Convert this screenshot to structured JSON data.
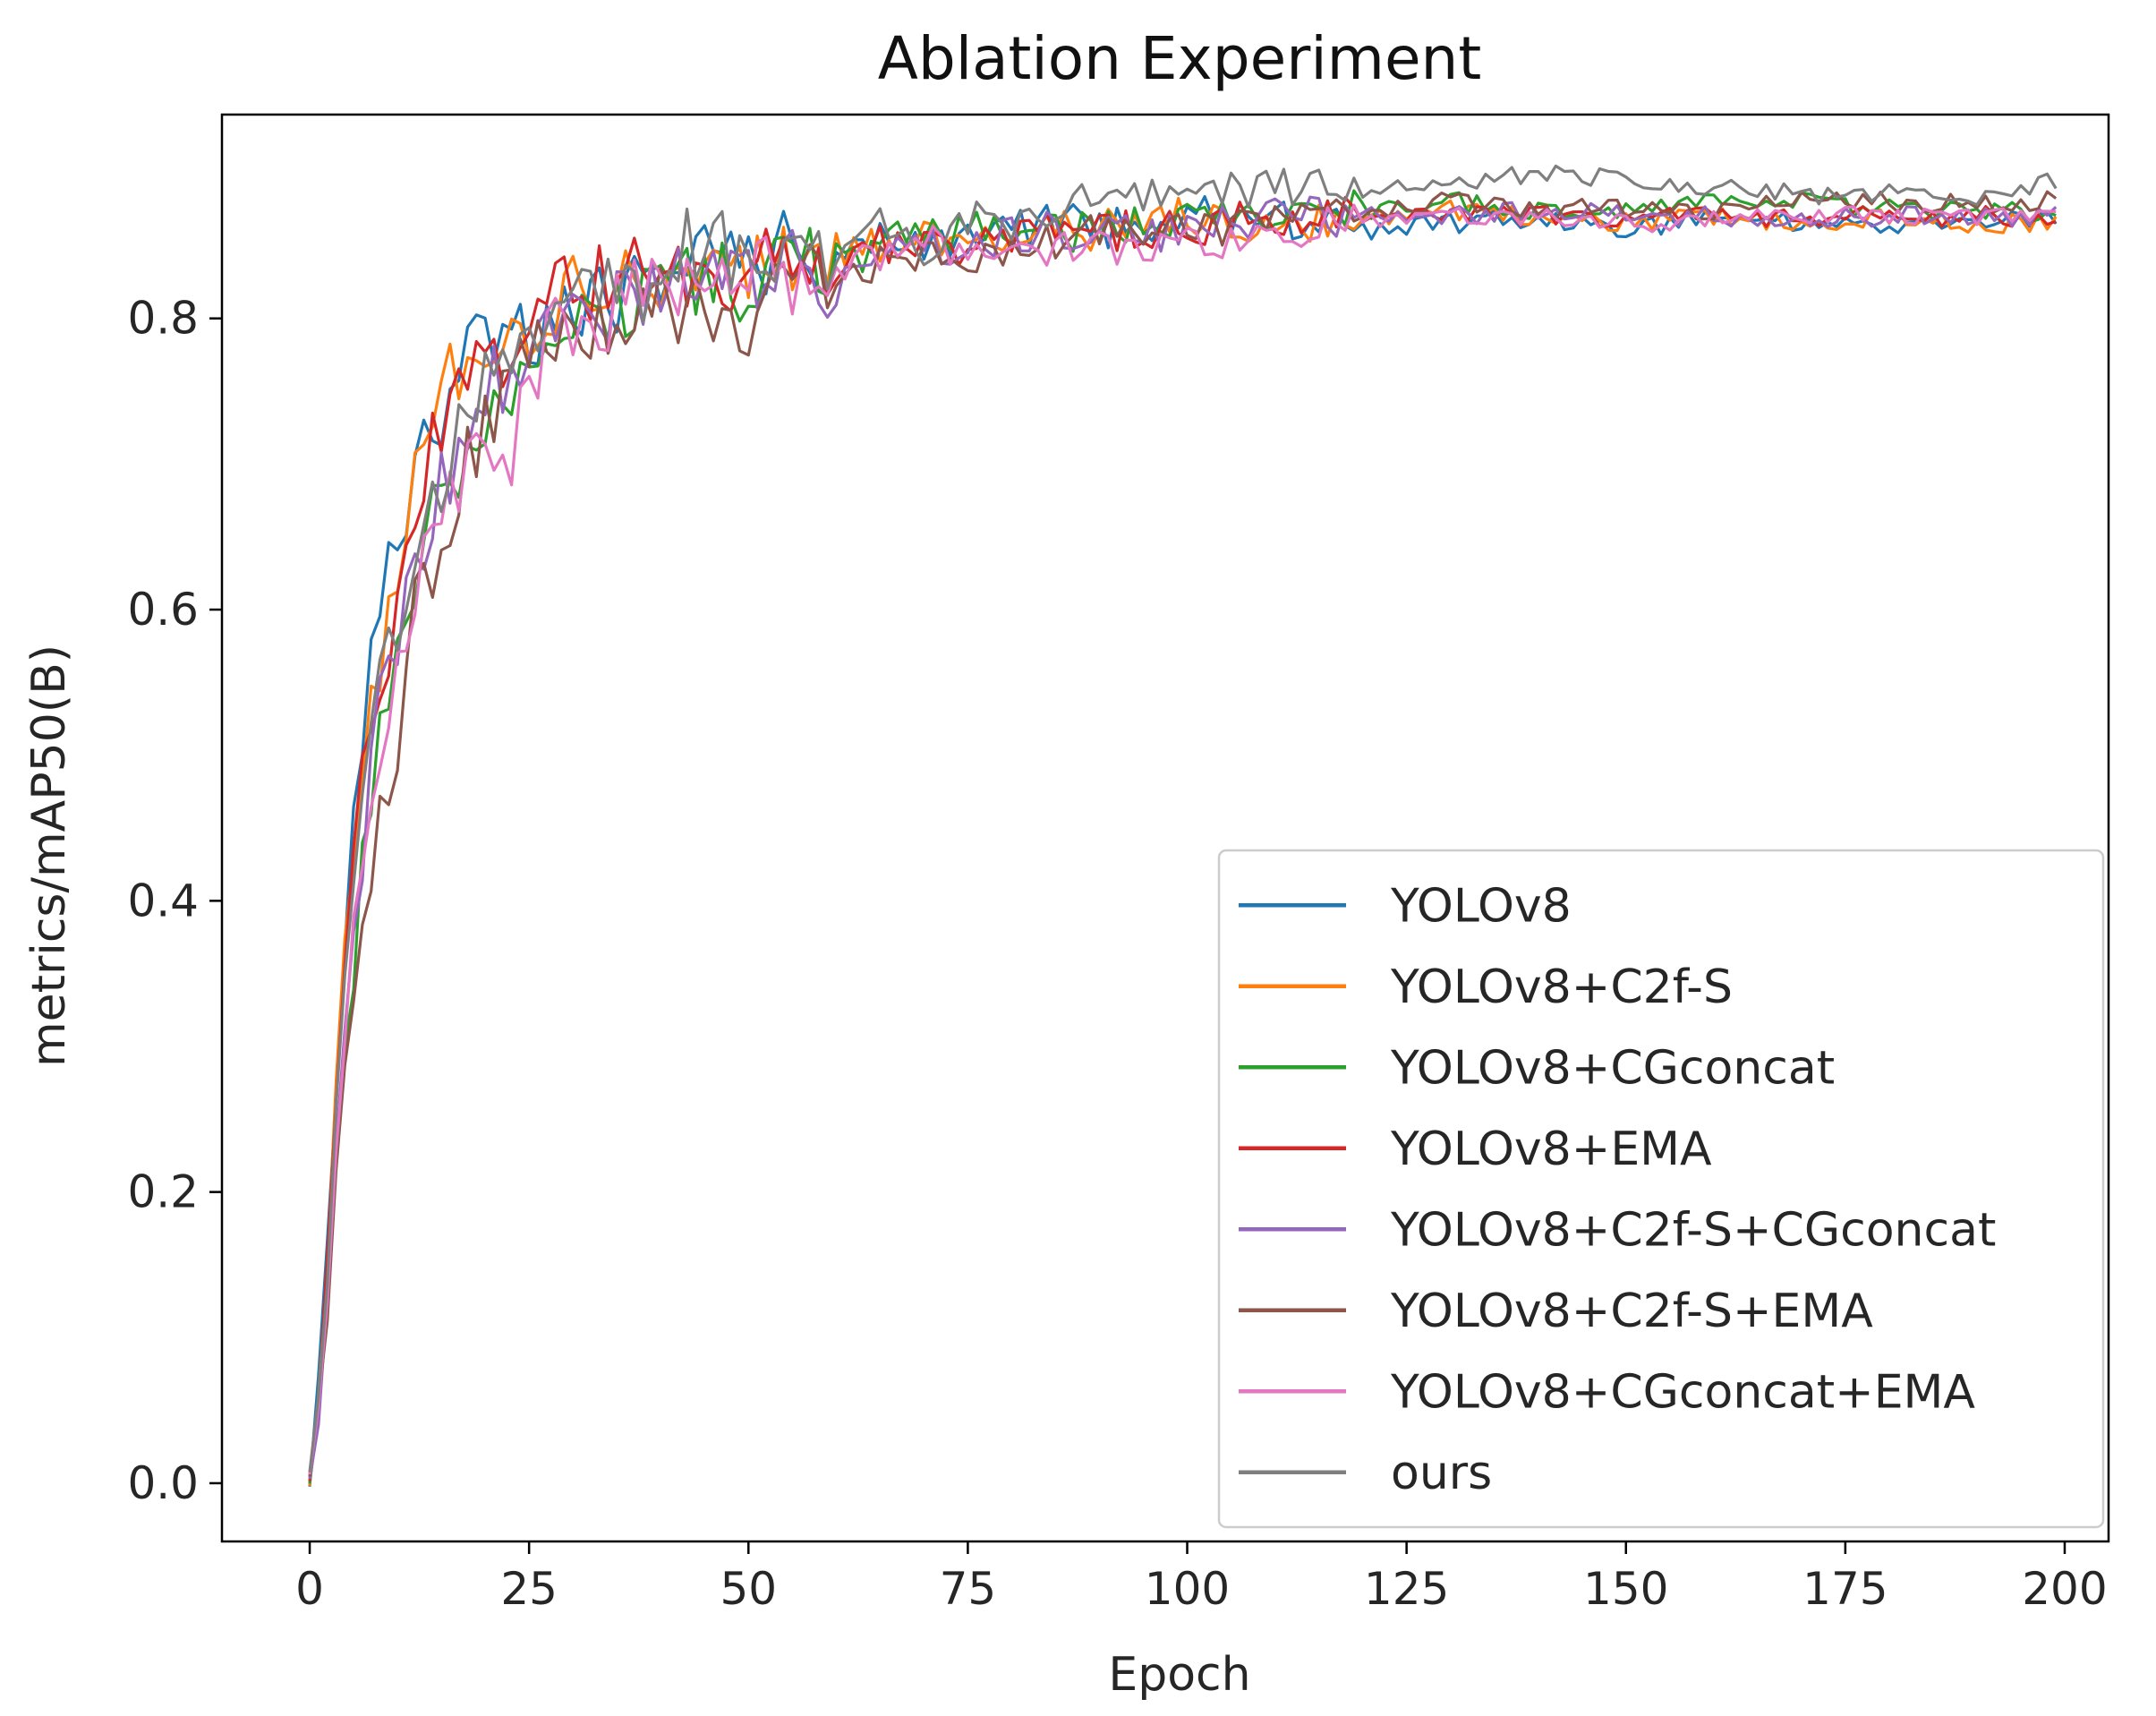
{
  "chart_data": {
    "type": "line",
    "title": "Ablation Experiment",
    "xlabel": "Epoch",
    "ylabel": "metrics/mAP50(B)",
    "xlim": [
      -10,
      205
    ],
    "ylim": [
      -0.04,
      0.94
    ],
    "xticks": [
      0,
      25,
      50,
      75,
      100,
      125,
      150,
      175,
      200
    ],
    "yticks": [
      0.0,
      0.2,
      0.4,
      0.6,
      0.8
    ],
    "ytick_labels": [
      "0.0",
      "0.2",
      "0.4",
      "0.6",
      "0.8"
    ],
    "grid": false,
    "legend_position": "lower-right",
    "x": [
      0,
      1,
      2,
      3,
      4,
      5,
      6,
      7,
      8,
      10,
      12,
      14,
      16,
      18,
      20,
      22,
      25,
      28,
      32,
      36,
      40,
      45,
      50,
      55,
      60,
      65,
      70,
      75,
      80,
      85,
      90,
      100,
      110,
      120,
      130,
      140,
      150,
      160,
      170,
      180,
      190,
      199
    ],
    "series": [
      {
        "name": "YOLOv8",
        "color": "#1f77b4",
        "values": [
          0.003,
          0.07,
          0.16,
          0.27,
          0.36,
          0.45,
          0.51,
          0.58,
          0.6,
          0.64,
          0.69,
          0.72,
          0.75,
          0.77,
          0.78,
          0.79,
          0.79,
          0.8,
          0.81,
          0.82,
          0.82,
          0.84,
          0.84,
          0.85,
          0.84,
          0.86,
          0.85,
          0.86,
          0.86,
          0.87,
          0.86,
          0.87,
          0.87,
          0.86,
          0.865,
          0.87,
          0.86,
          0.87,
          0.865,
          0.865,
          0.865,
          0.87
        ]
      },
      {
        "name": "YOLOv8+C2f-S",
        "color": "#ff7f0e",
        "values": [
          0.002,
          0.06,
          0.15,
          0.28,
          0.38,
          0.43,
          0.48,
          0.53,
          0.57,
          0.63,
          0.68,
          0.72,
          0.76,
          0.76,
          0.77,
          0.78,
          0.79,
          0.81,
          0.82,
          0.82,
          0.83,
          0.82,
          0.84,
          0.84,
          0.85,
          0.85,
          0.86,
          0.85,
          0.86,
          0.86,
          0.86,
          0.87,
          0.86,
          0.87,
          0.875,
          0.87,
          0.865,
          0.87,
          0.865,
          0.87,
          0.865,
          0.865
        ]
      },
      {
        "name": "YOLOv8+CGconcat",
        "color": "#2ca02c",
        "values": [
          0.002,
          0.05,
          0.13,
          0.22,
          0.3,
          0.36,
          0.43,
          0.48,
          0.52,
          0.56,
          0.62,
          0.67,
          0.7,
          0.71,
          0.74,
          0.75,
          0.78,
          0.76,
          0.8,
          0.8,
          0.82,
          0.83,
          0.82,
          0.84,
          0.84,
          0.85,
          0.86,
          0.86,
          0.86,
          0.86,
          0.86,
          0.87,
          0.87,
          0.875,
          0.88,
          0.875,
          0.875,
          0.88,
          0.88,
          0.875,
          0.875,
          0.87
        ]
      },
      {
        "name": "YOLOv8+EMA",
        "color": "#d62728",
        "values": [
          0.002,
          0.06,
          0.15,
          0.26,
          0.35,
          0.42,
          0.48,
          0.52,
          0.55,
          0.61,
          0.66,
          0.71,
          0.74,
          0.76,
          0.77,
          0.77,
          0.8,
          0.83,
          0.82,
          0.83,
          0.83,
          0.83,
          0.83,
          0.84,
          0.84,
          0.85,
          0.85,
          0.85,
          0.86,
          0.86,
          0.86,
          0.86,
          0.87,
          0.87,
          0.87,
          0.87,
          0.87,
          0.87,
          0.87,
          0.87,
          0.87,
          0.87
        ]
      },
      {
        "name": "YOLOv8+C2f-S+CGconcat",
        "color": "#9467bd",
        "values": [
          0.002,
          0.05,
          0.13,
          0.23,
          0.32,
          0.38,
          0.44,
          0.49,
          0.53,
          0.58,
          0.63,
          0.67,
          0.7,
          0.73,
          0.75,
          0.76,
          0.78,
          0.79,
          0.8,
          0.81,
          0.82,
          0.83,
          0.83,
          0.84,
          0.82,
          0.85,
          0.85,
          0.85,
          0.86,
          0.86,
          0.86,
          0.86,
          0.87,
          0.87,
          0.87,
          0.875,
          0.87,
          0.87,
          0.87,
          0.87,
          0.87,
          0.87
        ]
      },
      {
        "name": "YOLOv8+C2f-S+EMA",
        "color": "#8c564b",
        "values": [
          0.002,
          0.05,
          0.12,
          0.21,
          0.29,
          0.35,
          0.4,
          0.43,
          0.47,
          0.47,
          0.6,
          0.62,
          0.65,
          0.7,
          0.73,
          0.74,
          0.77,
          0.79,
          0.8,
          0.8,
          0.81,
          0.81,
          0.8,
          0.83,
          0.83,
          0.84,
          0.84,
          0.84,
          0.85,
          0.85,
          0.86,
          0.86,
          0.87,
          0.875,
          0.88,
          0.875,
          0.875,
          0.875,
          0.88,
          0.88,
          0.88,
          0.88
        ]
      },
      {
        "name": "YOLOv8+CGconcat+EMA",
        "color": "#e377c2",
        "values": [
          0.002,
          0.05,
          0.12,
          0.22,
          0.3,
          0.37,
          0.43,
          0.47,
          0.51,
          0.57,
          0.62,
          0.66,
          0.68,
          0.7,
          0.72,
          0.69,
          0.76,
          0.79,
          0.8,
          0.81,
          0.82,
          0.83,
          0.83,
          0.83,
          0.84,
          0.84,
          0.85,
          0.85,
          0.85,
          0.85,
          0.85,
          0.85,
          0.86,
          0.865,
          0.87,
          0.87,
          0.865,
          0.87,
          0.87,
          0.87,
          0.87,
          0.875
        ]
      },
      {
        "name": "ours",
        "color": "#7f7f7f",
        "values": [
          0.002,
          0.06,
          0.14,
          0.25,
          0.34,
          0.41,
          0.47,
          0.51,
          0.55,
          0.59,
          0.64,
          0.68,
          0.71,
          0.73,
          0.75,
          0.77,
          0.79,
          0.8,
          0.81,
          0.82,
          0.83,
          0.86,
          0.84,
          0.85,
          0.84,
          0.87,
          0.85,
          0.87,
          0.86,
          0.88,
          0.88,
          0.89,
          0.89,
          0.89,
          0.89,
          0.9,
          0.895,
          0.89,
          0.885,
          0.885,
          0.885,
          0.895
        ]
      }
    ]
  }
}
